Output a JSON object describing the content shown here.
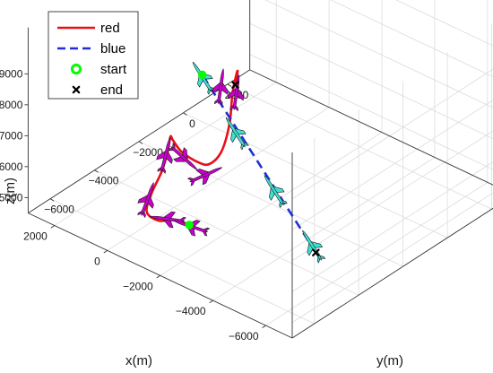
{
  "chart_data": {
    "type": "line",
    "projection": "3d",
    "xlabel": "x(m)",
    "ylabel": "y(m)",
    "zlabel": "z(m)",
    "xlim": [
      -7000,
      3000
    ],
    "ylim": [
      -7000,
      3000
    ],
    "zlim": [
      4500,
      10500
    ],
    "x_ticks": [
      -6000,
      -4000,
      -2000,
      0,
      2000
    ],
    "y_ticks": [
      -6000,
      -4000,
      -2000,
      0,
      2000
    ],
    "z_ticks": [
      5000,
      6000,
      7000,
      8000,
      9000
    ],
    "x_tick_labels": [
      "−6000",
      "−4000",
      "−2000",
      "0",
      "2000"
    ],
    "y_tick_labels": [
      "−6000",
      "−4000",
      "−2000",
      "0",
      "2000"
    ],
    "z_tick_labels": [
      "5000",
      "6000",
      "7000",
      "8000",
      "9000"
    ],
    "grid": true,
    "legend_position": "top-left",
    "legend": [
      {
        "label": "red",
        "style": "solid-line",
        "color": "#e8101a"
      },
      {
        "label": "blue",
        "style": "dashed-line",
        "color": "#1f2fd6"
      },
      {
        "label": "start",
        "style": "circle-marker",
        "color": "#00ff00"
      },
      {
        "label": "end",
        "style": "x-marker",
        "color": "#000000"
      }
    ],
    "series": [
      {
        "name": "red",
        "color": "#e8101a",
        "style": "solid",
        "points": [
          [
            -2600,
            -6400,
            6100
          ],
          [
            -1500,
            -5800,
            5550
          ],
          [
            -700,
            -5500,
            5050
          ],
          [
            100,
            -5100,
            4820
          ],
          [
            600,
            -4300,
            4840
          ],
          [
            800,
            -3600,
            5150
          ],
          [
            900,
            -3200,
            5600
          ],
          [
            800,
            -3200,
            6100
          ],
          [
            200,
            -3800,
            6500
          ],
          [
            -800,
            -4600,
            6900
          ],
          [
            -1900,
            -5200,
            7300
          ],
          [
            -2600,
            -5500,
            7650
          ],
          [
            -2900,
            -5300,
            8100
          ],
          [
            -2700,
            -4700,
            8650
          ],
          [
            -2300,
            -4100,
            9150
          ],
          [
            -2200,
            -3800,
            9600
          ],
          [
            -2500,
            -4100,
            9950
          ],
          [
            -3000,
            -4800,
            10050
          ]
        ]
      },
      {
        "name": "blue",
        "color": "#1f2fd6",
        "style": "dashed",
        "points": [
          [
            -6300,
            -5100,
            6100
          ],
          [
            2200,
            -100,
            6100
          ]
        ]
      }
    ],
    "markers": [
      {
        "name": "start",
        "shape": "circle",
        "color": "#00ff00",
        "points": [
          [
            2200,
            -100,
            6100
          ],
          [
            -2600,
            -6400,
            6100
          ]
        ]
      },
      {
        "name": "end",
        "shape": "x",
        "color": "#000000",
        "points": [
          [
            -6300,
            -5100,
            6100
          ],
          [
            -3000,
            -4800,
            10050
          ]
        ]
      }
    ],
    "aircraft": [
      {
        "series": "blue",
        "color": "#40e0d0",
        "x": 2100,
        "y": -200,
        "z": 6100
      },
      {
        "series": "blue",
        "color": "#40e0d0",
        "x": -500,
        "y": -1800,
        "z": 6100
      },
      {
        "series": "blue",
        "color": "#40e0d0",
        "x": -3300,
        "y": -3400,
        "z": 6100
      },
      {
        "series": "blue",
        "color": "#40e0d0",
        "x": -6000,
        "y": -4900,
        "z": 6100
      },
      {
        "series": "red",
        "color": "#cc00cc",
        "x": -2700,
        "y": -5100,
        "z": 10000
      },
      {
        "series": "red",
        "color": "#cc00cc",
        "x": -2200,
        "y": -3800,
        "z": 9000
      },
      {
        "series": "red",
        "color": "#cc00cc",
        "x": -2200,
        "y": -5200,
        "z": 7000
      },
      {
        "series": "red",
        "color": "#cc00cc",
        "x": -200,
        "y": -3800,
        "z": 6100
      },
      {
        "series": "red",
        "color": "#cc00cc",
        "x": 900,
        "y": -3300,
        "z": 5500
      },
      {
        "series": "red",
        "color": "#cc00cc",
        "x": 500,
        "y": -4600,
        "z": 4830
      },
      {
        "series": "red",
        "color": "#cc00cc",
        "x": -1200,
        "y": -5700,
        "z": 5400
      },
      {
        "series": "red",
        "color": "#cc00cc",
        "x": -2600,
        "y": -6300,
        "z": 6000
      }
    ]
  }
}
